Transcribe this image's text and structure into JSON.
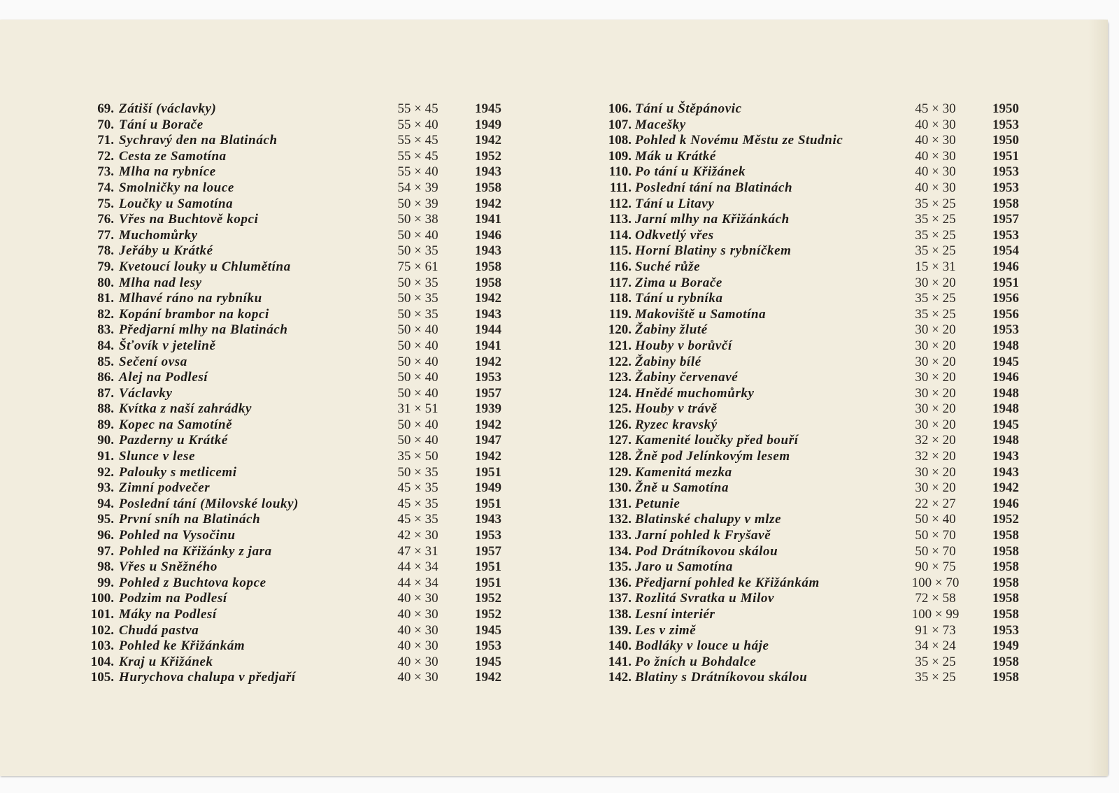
{
  "catalogue": {
    "left_column": [
      {
        "no": "69.",
        "title": "Zátiší (václavky)",
        "size": "55 × 45",
        "year": "1945"
      },
      {
        "no": "70.",
        "title": "Tání u Borače",
        "size": "55 × 40",
        "year": "1949"
      },
      {
        "no": "71.",
        "title": "Sychravý den na Blatinách",
        "size": "55 × 45",
        "year": "1942"
      },
      {
        "no": "72.",
        "title": "Cesta ze Samotína",
        "size": "55 × 45",
        "year": "1952"
      },
      {
        "no": "73.",
        "title": "Mlha na rybníce",
        "size": "55 × 40",
        "year": "1943"
      },
      {
        "no": "74.",
        "title": "Smolničky na louce",
        "size": "54 × 39",
        "year": "1958"
      },
      {
        "no": "75.",
        "title": "Loučky u Samotína",
        "size": "50 × 39",
        "year": "1942"
      },
      {
        "no": "76.",
        "title": "Vřes na Buchtově kopci",
        "size": "50 × 38",
        "year": "1941"
      },
      {
        "no": "77.",
        "title": "Muchomůrky",
        "size": "50 × 40",
        "year": "1946"
      },
      {
        "no": "78.",
        "title": "Jeřáby u Krátké",
        "size": "50 × 35",
        "year": "1943"
      },
      {
        "no": "79.",
        "title": "Kvetoucí louky u Chlumětína",
        "size": "75 × 61",
        "year": "1958"
      },
      {
        "no": "80.",
        "title": "Mlha nad lesy",
        "size": "50 × 35",
        "year": "1958"
      },
      {
        "no": "81.",
        "title": "Mlhavé ráno na rybníku",
        "size": "50 × 35",
        "year": "1942"
      },
      {
        "no": "82.",
        "title": "Kopání brambor na kopci",
        "size": "50 × 35",
        "year": "1943"
      },
      {
        "no": "83.",
        "title": "Předjarní mlhy na Blatinách",
        "size": "50 × 40",
        "year": "1944"
      },
      {
        "no": "84.",
        "title": "Šťovík v jetelině",
        "size": "50 × 40",
        "year": "1941"
      },
      {
        "no": "85.",
        "title": "Sečení ovsa",
        "size": "50 × 40",
        "year": "1942"
      },
      {
        "no": "86.",
        "title": "Alej na Podlesí",
        "size": "50 × 40",
        "year": "1953"
      },
      {
        "no": "87.",
        "title": "Václavky",
        "size": "50 × 40",
        "year": "1957"
      },
      {
        "no": "88.",
        "title": "Kvítka z naší zahrádky",
        "size": "31 × 51",
        "year": "1939"
      },
      {
        "no": "89.",
        "title": "Kopec na Samotíně",
        "size": "50 × 40",
        "year": "1942"
      },
      {
        "no": "90.",
        "title": "Pazderny u Krátké",
        "size": "50 × 40",
        "year": "1947"
      },
      {
        "no": "91.",
        "title": "Slunce v lese",
        "size": "35 × 50",
        "year": "1942"
      },
      {
        "no": "92.",
        "title": "Palouky s metlicemi",
        "size": "50 × 35",
        "year": "1951"
      },
      {
        "no": "93.",
        "title": "Zimní podvečer",
        "size": "45 × 35",
        "year": "1949"
      },
      {
        "no": "94.",
        "title": "Poslední tání (Milovské louky)",
        "size": "45 × 35",
        "year": "1951"
      },
      {
        "no": "95.",
        "title": "První sníh na Blatinách",
        "size": "45 × 35",
        "year": "1943"
      },
      {
        "no": "96.",
        "title": "Pohled na Vysočinu",
        "size": "42 × 30",
        "year": "1953"
      },
      {
        "no": "97.",
        "title": "Pohled na Křižánky z jara",
        "size": "47 × 31",
        "year": "1957"
      },
      {
        "no": "98.",
        "title": "Vřes u Sněžného",
        "size": "44 × 34",
        "year": "1951"
      },
      {
        "no": "99.",
        "title": "Pohled z Buchtova kopce",
        "size": "44 × 34",
        "year": "1951"
      },
      {
        "no": "100.",
        "title": "Podzim na Podlesí",
        "size": "40 × 30",
        "year": "1952"
      },
      {
        "no": "101.",
        "title": "Máky na Podlesí",
        "size": "40 × 30",
        "year": "1952"
      },
      {
        "no": "102.",
        "title": "Chudá pastva",
        "size": "40 × 30",
        "year": "1945"
      },
      {
        "no": "103.",
        "title": "Pohled ke Křižánkám",
        "size": "40 × 30",
        "year": "1953"
      },
      {
        "no": "104.",
        "title": "Kraj u Křižánek",
        "size": "40 × 30",
        "year": "1945"
      },
      {
        "no": "105.",
        "title": "Hurychova chalupa v předjaří",
        "size": "40 × 30",
        "year": "1942"
      }
    ],
    "right_column": [
      {
        "no": "106.",
        "title": "Tání u Štěpánovic",
        "size": "45 × 30",
        "year": "1950"
      },
      {
        "no": "107.",
        "title": "Macešky",
        "size": "40 × 30",
        "year": "1953"
      },
      {
        "no": "108.",
        "title": "Pohled k Novému Městu ze Studnic",
        "size": "40 × 30",
        "year": "1950"
      },
      {
        "no": "109.",
        "title": "Mák u Krátké",
        "size": "40 × 30",
        "year": "1951"
      },
      {
        "no": "110.",
        "title": "Po tání u Křižánek",
        "size": "40 × 30",
        "year": "1953"
      },
      {
        "no": "111.",
        "title": "Poslední tání na Blatinách",
        "size": "40 × 30",
        "year": "1953"
      },
      {
        "no": "112.",
        "title": "Tání u Litavy",
        "size": "35 × 25",
        "year": "1958"
      },
      {
        "no": "113.",
        "title": "Jarní mlhy na Křižánkách",
        "size": "35 × 25",
        "year": "1957"
      },
      {
        "no": "114.",
        "title": "Odkvetlý vřes",
        "size": "35 × 25",
        "year": "1953"
      },
      {
        "no": "115.",
        "title": "Horní Blatiny s rybníčkem",
        "size": "35 × 25",
        "year": "1954"
      },
      {
        "no": "116.",
        "title": "Suché růže",
        "size": "15 × 31",
        "year": "1946"
      },
      {
        "no": "117.",
        "title": "Zima u Borače",
        "size": "30 × 20",
        "year": "1951"
      },
      {
        "no": "118.",
        "title": "Tání u rybníka",
        "size": "35 × 25",
        "year": "1956"
      },
      {
        "no": "119.",
        "title": "Makoviště u Samotína",
        "size": "35 × 25",
        "year": "1956"
      },
      {
        "no": "120.",
        "title": "Žabiny žluté",
        "size": "30 × 20",
        "year": "1953"
      },
      {
        "no": "121.",
        "title": "Houby v borůvčí",
        "size": "30 × 20",
        "year": "1948"
      },
      {
        "no": "122.",
        "title": "Žabiny bílé",
        "size": "30 × 20",
        "year": "1945"
      },
      {
        "no": "123.",
        "title": "Žabiny červenavé",
        "size": "30 × 20",
        "year": "1946"
      },
      {
        "no": "124.",
        "title": "Hnědé muchomůrky",
        "size": "30 × 20",
        "year": "1948"
      },
      {
        "no": "125.",
        "title": "Houby v trávě",
        "size": "30 × 20",
        "year": "1948"
      },
      {
        "no": "126.",
        "title": "Ryzec kravský",
        "size": "30 × 20",
        "year": "1945"
      },
      {
        "no": "127.",
        "title": "Kamenité loučky před bouří",
        "size": "32 × 20",
        "year": "1948"
      },
      {
        "no": "128.",
        "title": "Žně pod Jelínkovým lesem",
        "size": "32 × 20",
        "year": "1943"
      },
      {
        "no": "129.",
        "title": "Kamenitá mezka",
        "size": "30 × 20",
        "year": "1943"
      },
      {
        "no": "130.",
        "title": "Žně u Samotína",
        "size": "30 × 20",
        "year": "1942"
      },
      {
        "no": "131.",
        "title": "Petunie",
        "size": "22 × 27",
        "year": "1946"
      },
      {
        "no": "132.",
        "title": "Blatinské chalupy v mlze",
        "size": "50 × 40",
        "year": "1952"
      },
      {
        "no": "133.",
        "title": "Jarní pohled k Fryšavě",
        "size": "50 × 70",
        "year": "1958"
      },
      {
        "no": "134.",
        "title": "Pod Drátníkovou skálou",
        "size": "50 × 70",
        "year": "1958"
      },
      {
        "no": "135.",
        "title": "Jaro u Samotína",
        "size": "90 × 75",
        "year": "1958"
      },
      {
        "no": "136.",
        "title": "Předjarní pohled ke Křižánkám",
        "size": "100 × 70",
        "year": "1958"
      },
      {
        "no": "137.",
        "title": "Rozlitá Svratka u Milov",
        "size": "72 × 58",
        "year": "1958"
      },
      {
        "no": "138.",
        "title": "Lesní interiér",
        "size": "100 × 99",
        "year": "1958"
      },
      {
        "no": "139.",
        "title": "Les v zimě",
        "size": "91 × 73",
        "year": "1953"
      },
      {
        "no": "140.",
        "title": "Bodláky v louce u háje",
        "size": "34 × 24",
        "year": "1949"
      },
      {
        "no": "141.",
        "title": "Po žních u Bohdalce",
        "size": "35 × 25",
        "year": "1958"
      },
      {
        "no": "142.",
        "title": "Blatiny s Drátníkovou skálou",
        "size": "35 × 25",
        "year": "1958"
      }
    ]
  }
}
